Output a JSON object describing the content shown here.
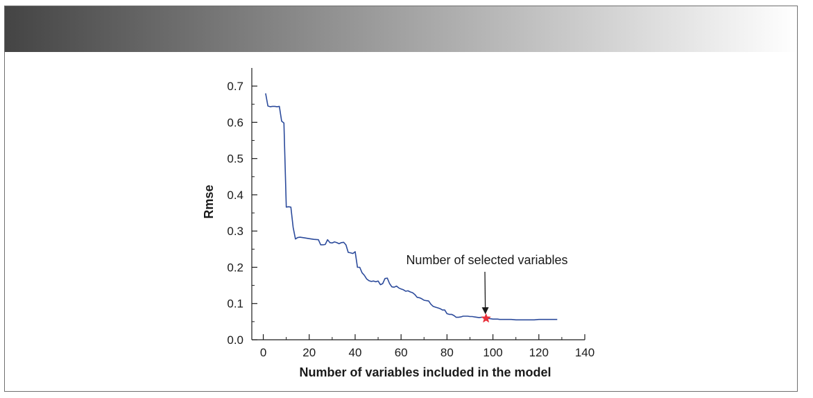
{
  "colors": {
    "header_gradient_start": "#444444",
    "header_gradient_end": "#ffffff",
    "line": "#2b4a9b",
    "marker": "#e8303a",
    "axis": "#1a1a1a",
    "frame_border": "#6f6f6f"
  },
  "chart_data": {
    "type": "line",
    "title": "",
    "xlabel": "Number of variables included in the model",
    "ylabel": "Rmse",
    "xlim": [
      -5,
      140
    ],
    "ylim": [
      0,
      0.75
    ],
    "grid": false,
    "x_ticks": [
      0,
      20,
      40,
      60,
      80,
      100,
      120,
      140
    ],
    "x_tick_labels": [
      "0",
      "20",
      "40",
      "60",
      "80",
      "100",
      "120",
      "140"
    ],
    "y_ticks": [
      0.0,
      0.1,
      0.2,
      0.3,
      0.4,
      0.5,
      0.6,
      0.7
    ],
    "y_tick_labels": [
      "0.0",
      "0.1",
      "0.2",
      "0.3",
      "0.4",
      "0.5",
      "0.6",
      "0.7"
    ],
    "series": [
      {
        "name": "Rmse",
        "x": [
          1,
          2,
          3,
          4,
          5,
          6,
          7,
          8,
          9,
          10,
          11,
          12,
          13,
          14,
          15,
          16,
          18,
          20,
          22,
          24,
          25,
          26,
          27,
          28,
          29,
          30,
          31,
          32,
          33,
          34,
          35,
          36,
          37,
          38,
          39,
          40,
          41,
          42,
          43,
          44,
          45,
          46,
          47,
          48,
          49,
          50,
          51,
          52,
          53,
          54,
          55,
          56,
          57,
          58,
          59,
          60,
          61,
          62,
          63,
          64,
          65,
          66,
          67,
          68,
          69,
          70,
          71,
          72,
          73,
          74,
          75,
          76,
          77,
          78,
          79,
          80,
          81,
          82,
          83,
          84,
          85,
          86,
          87,
          88,
          89,
          90,
          91,
          92,
          93,
          94,
          95,
          96,
          97,
          98,
          99,
          100,
          101,
          102,
          103,
          104,
          105,
          106,
          108,
          110,
          112,
          114,
          116,
          118,
          120,
          122,
          124,
          126,
          128
        ],
        "values": [
          0.68,
          0.645,
          0.643,
          0.644,
          0.644,
          0.643,
          0.644,
          0.603,
          0.598,
          0.366,
          0.367,
          0.366,
          0.31,
          0.278,
          0.282,
          0.283,
          0.281,
          0.279,
          0.277,
          0.276,
          0.262,
          0.262,
          0.263,
          0.276,
          0.268,
          0.267,
          0.27,
          0.268,
          0.265,
          0.268,
          0.269,
          0.262,
          0.241,
          0.24,
          0.238,
          0.243,
          0.2,
          0.2,
          0.185,
          0.178,
          0.168,
          0.163,
          0.161,
          0.162,
          0.16,
          0.162,
          0.152,
          0.155,
          0.169,
          0.17,
          0.155,
          0.146,
          0.145,
          0.148,
          0.143,
          0.14,
          0.138,
          0.134,
          0.135,
          0.132,
          0.13,
          0.125,
          0.117,
          0.116,
          0.113,
          0.109,
          0.108,
          0.107,
          0.098,
          0.092,
          0.09,
          0.088,
          0.086,
          0.082,
          0.082,
          0.072,
          0.07,
          0.07,
          0.067,
          0.062,
          0.062,
          0.063,
          0.065,
          0.065,
          0.065,
          0.064,
          0.064,
          0.063,
          0.062,
          0.061,
          0.062,
          0.062,
          0.06,
          0.059,
          0.058,
          0.057,
          0.057,
          0.057,
          0.056,
          0.056,
          0.056,
          0.056,
          0.056,
          0.055,
          0.055,
          0.055,
          0.055,
          0.055,
          0.056,
          0.056,
          0.056,
          0.056,
          0.056
        ]
      }
    ],
    "highlight_point": {
      "x": 97,
      "y": 0.059,
      "marker": "star"
    },
    "annotations": [
      {
        "text": "Number of selected variables",
        "points_to": {
          "x": 97,
          "y": 0.059
        }
      }
    ]
  }
}
